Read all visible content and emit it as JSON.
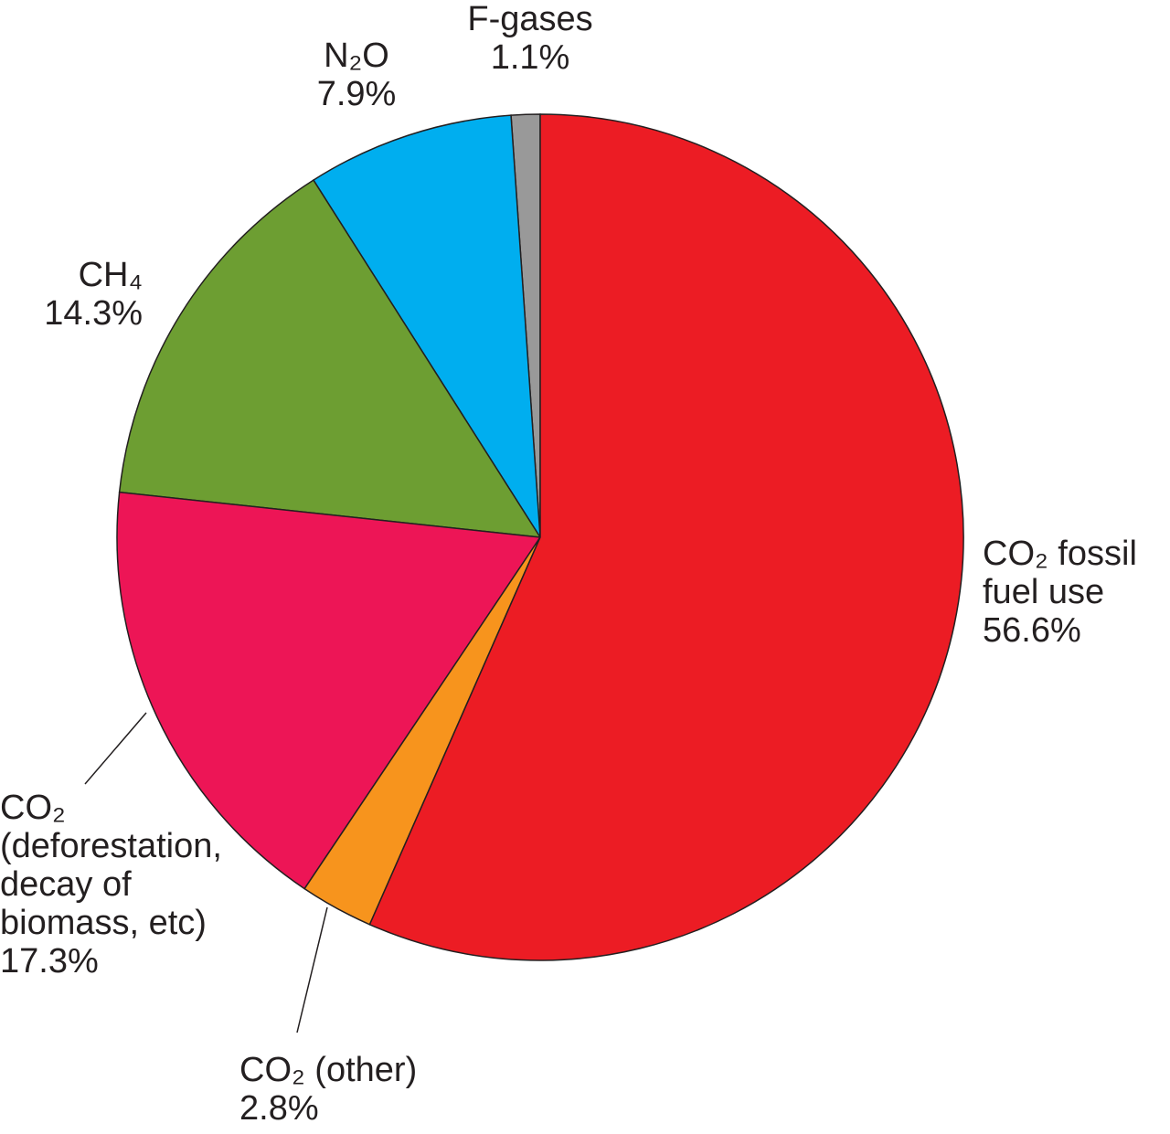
{
  "chart_data": {
    "type": "pie",
    "categories": [
      "CO₂ fossil fuel use",
      "CO₂ (other)",
      "CO₂ (deforestation, decay of biomass, etc)",
      "CH₄",
      "N₂O",
      "F-gases"
    ],
    "values": [
      56.6,
      2.8,
      17.3,
      14.3,
      7.9,
      1.1
    ],
    "value_labels": [
      "56.6%",
      "2.8%",
      "17.3%",
      "14.3%",
      "7.9%",
      "1.1%"
    ],
    "colors": [
      "#ec1c24",
      "#f7941d",
      "#ed1556",
      "#6d9e32",
      "#00aeef",
      "#999999"
    ]
  }
}
